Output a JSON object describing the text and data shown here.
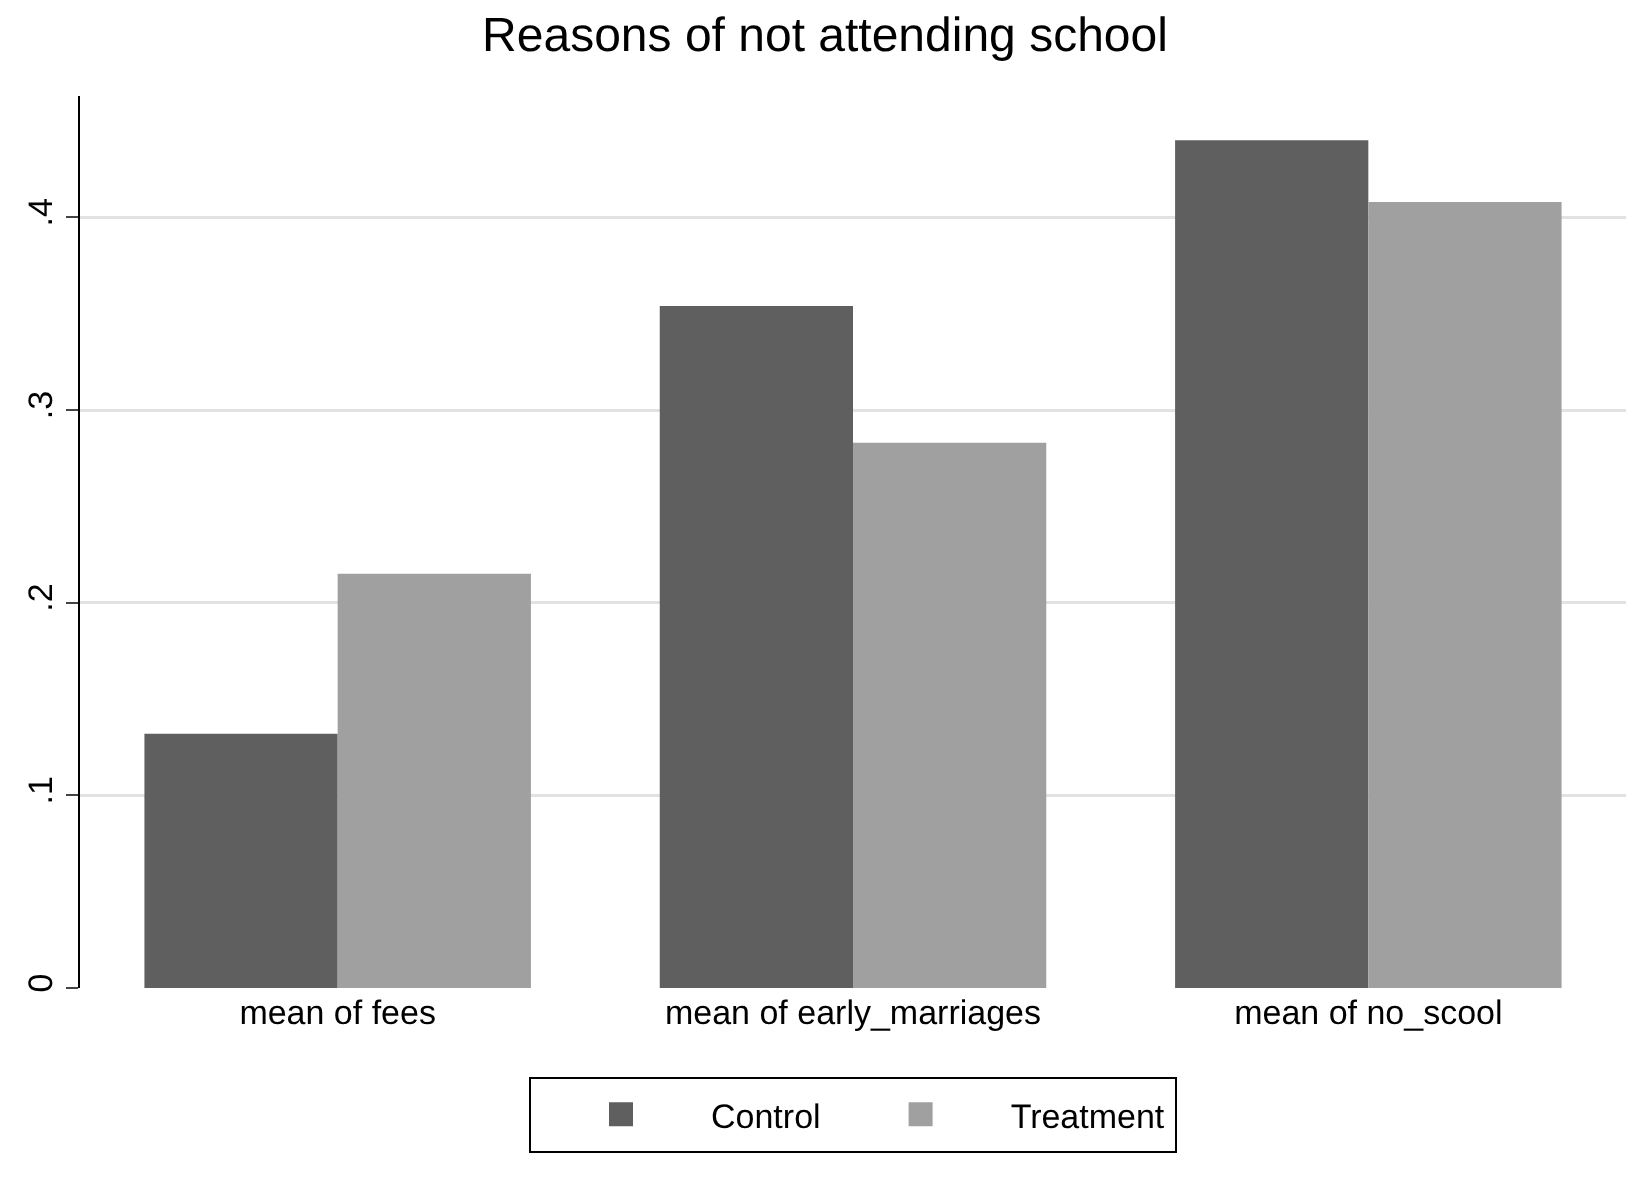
{
  "chart_data": {
    "type": "bar",
    "title": "Reasons of not attending school",
    "categories": [
      "mean of fees",
      "mean of early_marriages",
      "mean of no_scool"
    ],
    "series": [
      {
        "name": "Control",
        "color": "#5f5f5f",
        "values": [
          0.132,
          0.354,
          0.44
        ]
      },
      {
        "name": "Treatment",
        "color": "#a0a0a0",
        "values": [
          0.215,
          0.283,
          0.408
        ]
      }
    ],
    "ylim": [
      0,
      0.463
    ],
    "yticks": [
      {
        "value": 0,
        "label": "0"
      },
      {
        "value": 0.1,
        "label": ".1"
      },
      {
        "value": 0.2,
        "label": ".2"
      },
      {
        "value": 0.3,
        "label": ".3"
      },
      {
        "value": 0.4,
        "label": ".4"
      }
    ],
    "grid": "y",
    "legend": "bottom"
  }
}
